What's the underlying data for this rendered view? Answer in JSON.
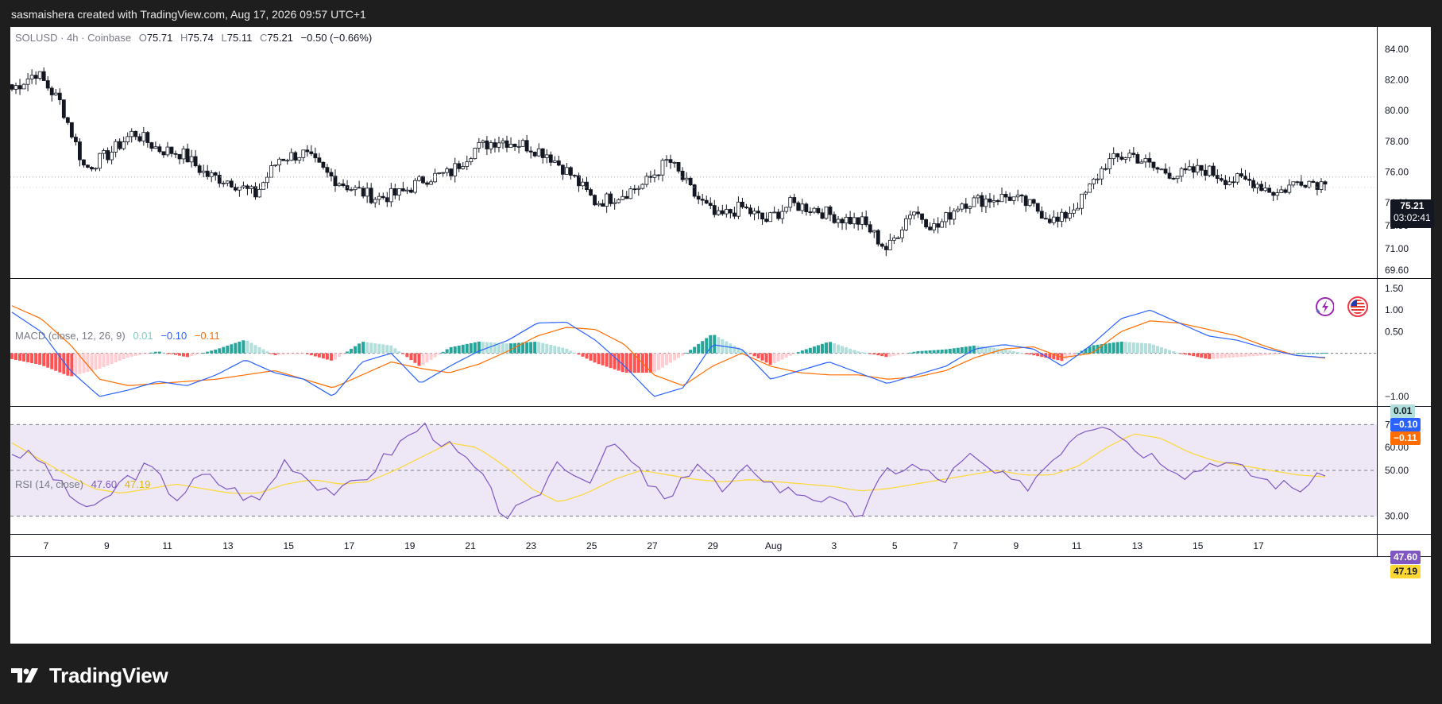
{
  "header": {
    "attribution": "sasmaishera created with TradingView.com, Aug 17, 2026 09:57 UTC+1"
  },
  "price_pane": {
    "symbol": "SOLUSD",
    "sep1": "·",
    "interval": "4h",
    "sep2": "·",
    "exchange": "Coinbase",
    "open_label": "O",
    "open": "75.71",
    "high_label": "H",
    "high": "75.74",
    "low_label": "L",
    "low": "75.11",
    "close_label": "C",
    "close": "75.21",
    "change": "−0.50 (−0.66%)",
    "last_price": "75.21",
    "countdown": "03:02:41",
    "y_ticks": [
      "84.00",
      "82.00",
      "80.00",
      "78.00",
      "76.00",
      "74.00",
      "72.50",
      "71.00",
      "69.60"
    ],
    "icons": [
      "flash-icon",
      "us-flag-icon"
    ]
  },
  "macd_pane": {
    "title": "MACD (close, 12, 26, 9)",
    "hist_value": "0.01",
    "macd_value": "−0.10",
    "signal_value": "−0.11",
    "y_ticks": [
      "1.50",
      "1.00",
      "0.50",
      "−1.00"
    ],
    "colors": {
      "macd": "#2962ff",
      "signal": "#ff6d00",
      "hist_up": "#26a69a",
      "hist_up_light": "#b2dfdb",
      "hist_down": "#ff5252",
      "hist_down_light": "#ffcdd2"
    }
  },
  "rsi_pane": {
    "title": "RSI (14, close)",
    "rsi_value": "47.60",
    "ma_value": "47.19",
    "y_ticks": [
      "70.00",
      "60.00",
      "50.00",
      "30.00"
    ],
    "colors": {
      "rsi": "#7e57c2",
      "ma": "#fdd835",
      "band": "#ede7f6"
    }
  },
  "x_axis": {
    "labels": [
      "7",
      "9",
      "11",
      "13",
      "15",
      "17",
      "19",
      "21",
      "23",
      "25",
      "27",
      "29",
      "Aug",
      "3",
      "5",
      "7",
      "9",
      "11",
      "13",
      "15",
      "17"
    ]
  },
  "footer": {
    "brand": "TradingView"
  },
  "chart_data": [
    {
      "type": "candlestick",
      "title": "SOLUSD · 4h · Coinbase",
      "ylim": [
        69.6,
        84.0
      ],
      "x_start": "Jul 6",
      "x_end": "Aug 17",
      "approx_close_path": [
        81.4,
        82.5,
        80.5,
        76.2,
        77.2,
        78.6,
        77.5,
        77.2,
        75.8,
        75.4,
        74.5,
        76.9,
        77.2,
        75.8,
        74.9,
        74.3,
        74.6,
        75.6,
        75.9,
        77.5,
        78.1,
        77.8,
        77.2,
        75.8,
        74.0,
        74.5,
        75.2,
        76.8,
        74.6,
        73.0,
        73.7,
        72.8,
        73.9,
        73.6,
        73.0,
        72.7,
        70.9,
        73.6,
        72.3,
        74.0,
        74.2,
        74.4,
        73.7,
        72.7,
        74.2,
        76.6,
        77.2,
        76.2,
        75.8,
        76.2,
        75.5,
        75.4,
        74.6,
        75.5,
        75.21
      ],
      "last": 75.21
    },
    {
      "type": "line",
      "title": "MACD (close, 12, 26, 9)",
      "ylim": [
        -1.0,
        1.5
      ],
      "series": [
        {
          "name": "MACD",
          "values": [
            0.95,
            0.5,
            -0.4,
            -1.0,
            -0.85,
            -0.65,
            -0.75,
            -0.5,
            -0.15,
            -0.45,
            -0.6,
            -1.0,
            -0.2,
            0.0,
            -0.7,
            -0.3,
            0.05,
            0.3,
            0.7,
            0.72,
            0.3,
            -0.3,
            -1.0,
            -0.8,
            0.2,
            0.1,
            -0.6,
            -0.4,
            -0.2,
            -0.45,
            -0.7,
            -0.5,
            -0.3,
            0.1,
            0.2,
            0.1,
            -0.3,
            0.2,
            0.8,
            1.0,
            0.7,
            0.4,
            0.3,
            0.1,
            -0.05,
            -0.1
          ]
        },
        {
          "name": "Signal",
          "values": [
            1.1,
            0.8,
            0.2,
            -0.6,
            -0.75,
            -0.7,
            -0.65,
            -0.6,
            -0.5,
            -0.4,
            -0.6,
            -0.8,
            -0.5,
            -0.2,
            -0.35,
            -0.45,
            -0.25,
            0.05,
            0.4,
            0.6,
            0.55,
            0.2,
            -0.5,
            -0.75,
            -0.3,
            0.0,
            -0.3,
            -0.45,
            -0.5,
            -0.5,
            -0.6,
            -0.55,
            -0.4,
            -0.1,
            0.1,
            0.15,
            -0.1,
            0.0,
            0.5,
            0.75,
            0.7,
            0.55,
            0.4,
            0.15,
            -0.05,
            -0.11
          ]
        }
      ]
    },
    {
      "type": "line",
      "title": "RSI (14, close)",
      "ylim": [
        25,
        75
      ],
      "bands": [
        30,
        50,
        70
      ],
      "series": [
        {
          "name": "RSI",
          "values": [
            58,
            55,
            40,
            32,
            45,
            52,
            38,
            48,
            42,
            36,
            55,
            45,
            40,
            48,
            60,
            70,
            60,
            50,
            30,
            35,
            55,
            45,
            62,
            48,
            35,
            55,
            40,
            52,
            42,
            40,
            36,
            30,
            50,
            52,
            45,
            56,
            48,
            42,
            55,
            68,
            72,
            60,
            55,
            48,
            55,
            50,
            45,
            42,
            47.6
          ]
        },
        {
          "name": "RSI-based MA",
          "values": [
            62,
            55,
            48,
            42,
            40,
            42,
            44,
            42,
            40,
            40,
            44,
            46,
            44,
            45,
            50,
            56,
            62,
            60,
            52,
            42,
            36,
            40,
            46,
            50,
            48,
            46,
            45,
            46,
            45,
            44,
            43,
            41,
            42,
            44,
            46,
            48,
            50,
            48,
            48,
            52,
            60,
            66,
            64,
            58,
            54,
            52,
            50,
            48,
            47.19
          ]
        }
      ]
    }
  ]
}
